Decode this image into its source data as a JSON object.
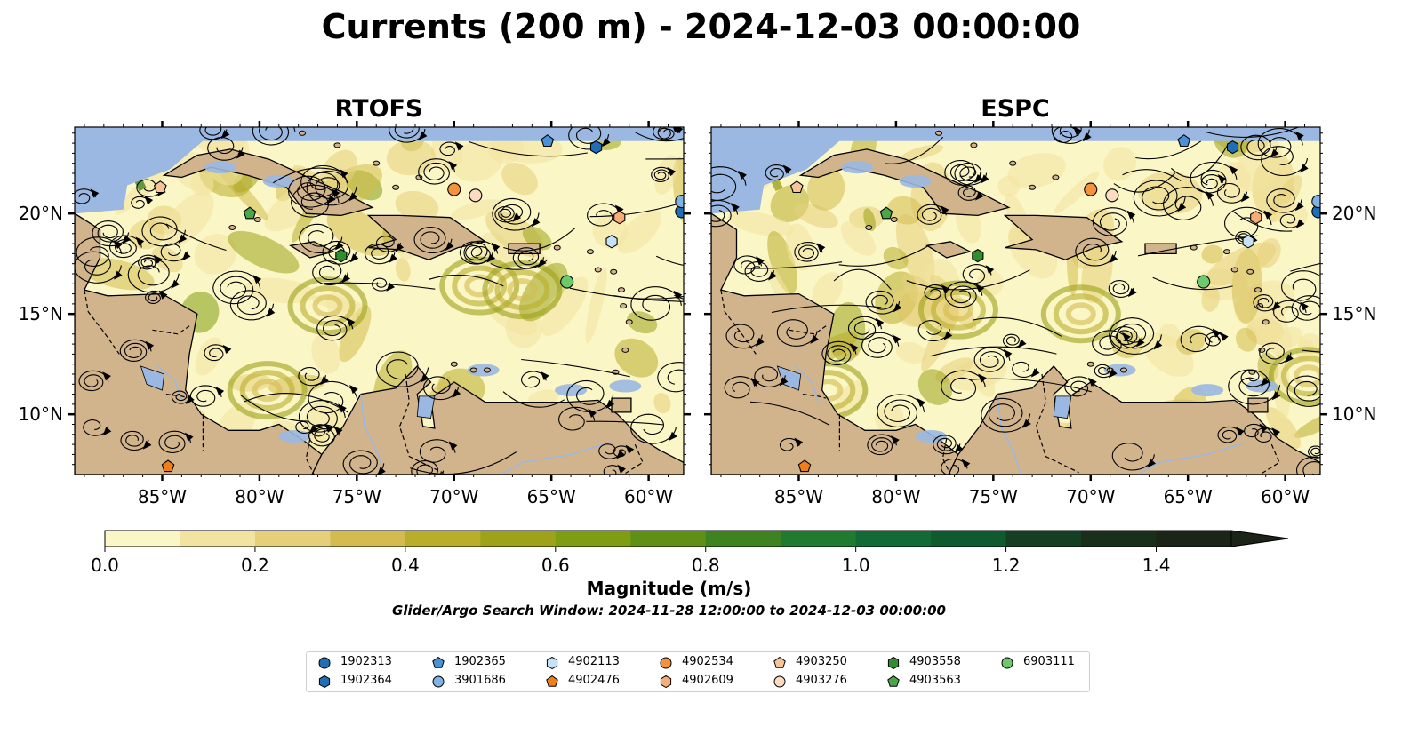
{
  "title": "Currents (200 m) - 2024-12-03 00:00:00",
  "panels": [
    {
      "title": "RTOFS"
    },
    {
      "title": "ESPC"
    }
  ],
  "axes": {
    "x_ticks": [
      "85°W",
      "80°W",
      "75°W",
      "70°W",
      "65°W",
      "60°W"
    ],
    "x_values": [
      -85,
      -80,
      -75,
      -70,
      -65,
      -60
    ],
    "y_ticks": [
      "10°N",
      "15°N",
      "20°N"
    ],
    "y_values": [
      10,
      15,
      20
    ],
    "lon_range": [
      -89.5,
      -58.2
    ],
    "lat_range": [
      7.0,
      24.3
    ]
  },
  "colorbar": {
    "label": "Magnitude (m/s)",
    "ticks": [
      "0.0",
      "0.2",
      "0.4",
      "0.6",
      "0.8",
      "1.0",
      "1.2",
      "1.4"
    ],
    "tick_values": [
      0.0,
      0.2,
      0.4,
      0.6,
      0.8,
      1.0,
      1.2,
      1.4
    ],
    "range": [
      0.0,
      1.5
    ],
    "extend": "max",
    "colors": [
      "#fbf6c5",
      "#f2e3a0",
      "#e5cf7a",
      "#d4bb4f",
      "#b9ad2c",
      "#9da21a",
      "#7f9d12",
      "#5f9015",
      "#3f8321",
      "#207a2f",
      "#126b34",
      "#0f5a2f",
      "#153f23",
      "#1a2f1a",
      "#1c2418"
    ]
  },
  "search_window": "Glider/Argo Search Window: 2024-11-28 12:00:00 to 2024-12-03 00:00:00",
  "legend": [
    {
      "id": "1902313",
      "shape": "circle",
      "color": "#1f6fb8"
    },
    {
      "id": "1902364",
      "shape": "hexagon",
      "color": "#1f6fb8"
    },
    {
      "id": "1902365",
      "shape": "pentagon",
      "color": "#4a92d6"
    },
    {
      "id": "3901686",
      "shape": "circle",
      "color": "#7fb3e3"
    },
    {
      "id": "4902113",
      "shape": "hexagon",
      "color": "#c6e2f7"
    },
    {
      "id": "4902476",
      "shape": "pentagon",
      "color": "#f07f1a"
    },
    {
      "id": "4902534",
      "shape": "circle",
      "color": "#f5923e"
    },
    {
      "id": "4902609",
      "shape": "hexagon",
      "color": "#f7ad75"
    },
    {
      "id": "4903250",
      "shape": "pentagon",
      "color": "#f7c49a"
    },
    {
      "id": "4903276",
      "shape": "circle",
      "color": "#fbdcc0"
    },
    {
      "id": "4903558",
      "shape": "hexagon",
      "color": "#2f8f2f"
    },
    {
      "id": "4903563",
      "shape": "pentagon",
      "color": "#48a848"
    },
    {
      "id": "6903111",
      "shape": "circle",
      "color": "#6cc96c"
    }
  ],
  "floats": [
    {
      "id": "1902313",
      "lon": -58.3,
      "lat": 20.1
    },
    {
      "id": "1902364",
      "lon": -62.7,
      "lat": 23.3
    },
    {
      "id": "1902365",
      "lon": -65.2,
      "lat": 23.6
    },
    {
      "id": "3901686",
      "lon": -58.3,
      "lat": 20.6
    },
    {
      "id": "4902113",
      "lon": -61.9,
      "lat": 18.6
    },
    {
      "id": "4902476",
      "lon": -84.7,
      "lat": 7.4
    },
    {
      "id": "4902534",
      "lon": -70.0,
      "lat": 21.2
    },
    {
      "id": "4902609",
      "lon": -61.5,
      "lat": 19.8
    },
    {
      "id": "4903250",
      "lon": -85.1,
      "lat": 21.3
    },
    {
      "id": "4903276",
      "lon": -68.9,
      "lat": 20.9
    },
    {
      "id": "4903558",
      "lon": -75.8,
      "lat": 17.9
    },
    {
      "id": "4903563",
      "lon": -80.5,
      "lat": 20.0
    },
    {
      "id": "6903111",
      "lon": -64.2,
      "lat": 16.6
    }
  ],
  "map_colors": {
    "land": "#d2b48c",
    "ocean": "#9ab8e2",
    "coast": "#000000",
    "border": "#000000",
    "river": "#9ab8e2"
  }
}
